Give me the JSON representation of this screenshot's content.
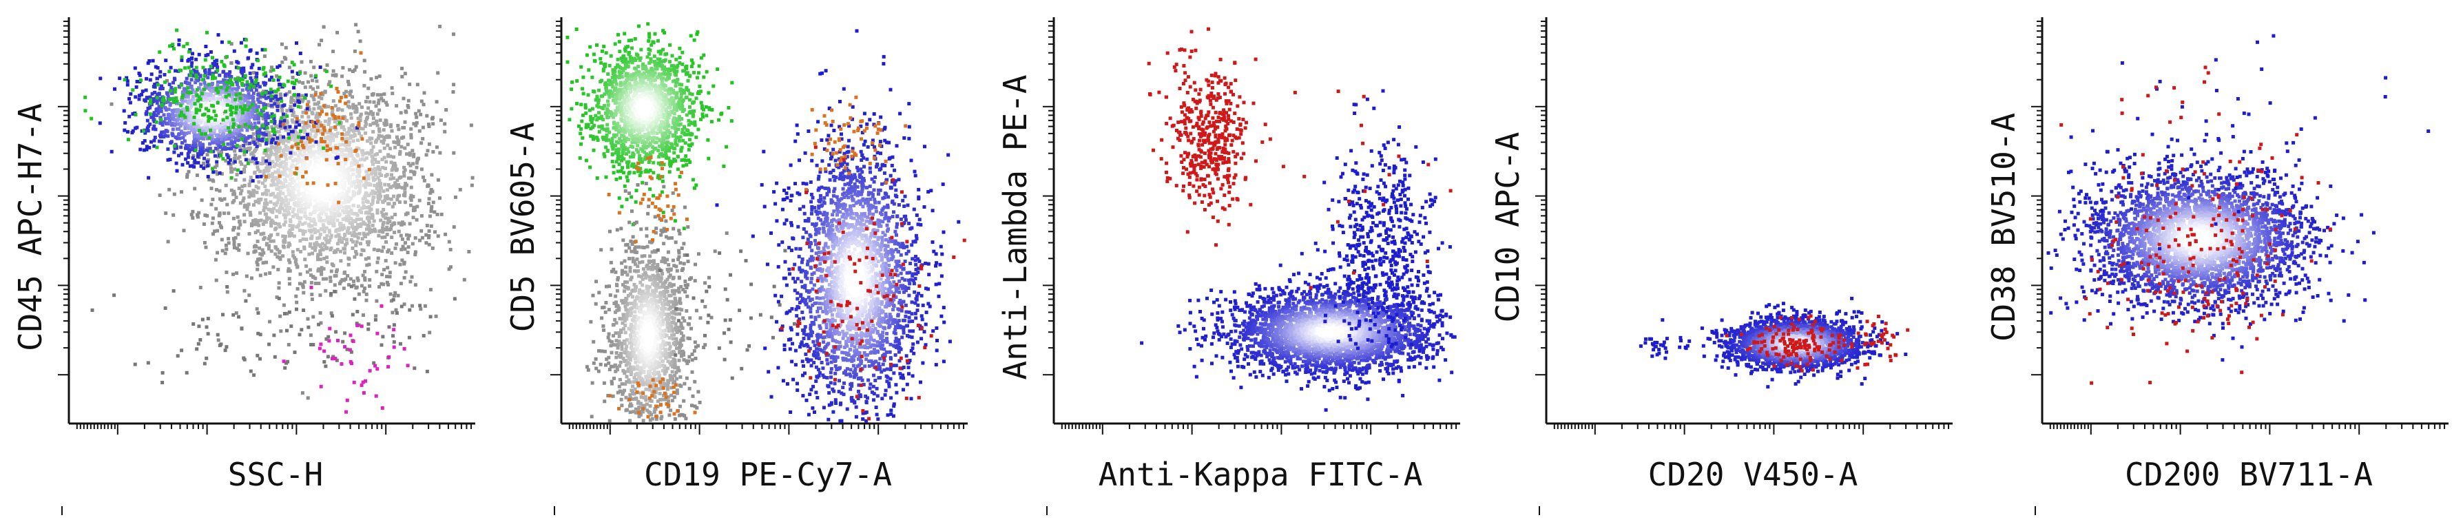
{
  "chart_data": [
    {
      "type": "scatter",
      "xlabel": "SSC-H",
      "ylabel": "CD45 APC-H7-A",
      "xscale": "log",
      "yscale": "log",
      "grid": false,
      "legend": "none",
      "populations": [
        {
          "color": "#8a8a8a",
          "density": true,
          "cx": 0.62,
          "cy": 0.6,
          "sx": 0.13,
          "sy": 0.13,
          "n": 2600
        },
        {
          "color": "#1c1cd0",
          "density": true,
          "cx": 0.35,
          "cy": 0.77,
          "sx": 0.09,
          "sy": 0.06,
          "n": 1300
        },
        {
          "color": "#1fc41f",
          "cx": 0.38,
          "cy": 0.8,
          "sx": 0.11,
          "sy": 0.07,
          "n": 250
        },
        {
          "color": "#d9731f",
          "cx": 0.62,
          "cy": 0.72,
          "sx": 0.06,
          "sy": 0.07,
          "n": 80
        },
        {
          "color": "#777777",
          "cx": 0.55,
          "cy": 0.22,
          "sx": 0.2,
          "sy": 0.06,
          "n": 110
        },
        {
          "color": "#e020c0",
          "cx": 0.7,
          "cy": 0.16,
          "sx": 0.06,
          "sy": 0.06,
          "n": 40
        }
      ]
    },
    {
      "type": "scatter",
      "xlabel": "CD19 PE-Cy7-A",
      "ylabel": "CD5 BV605-A",
      "xscale": "log",
      "yscale": "log",
      "grid": false,
      "legend": "none",
      "populations": [
        {
          "color": "#1fc41f",
          "density": true,
          "cx": 0.2,
          "cy": 0.78,
          "sx": 0.07,
          "sy": 0.08,
          "n": 1500
        },
        {
          "color": "#8a8a8a",
          "density": true,
          "cx": 0.21,
          "cy": 0.22,
          "sx": 0.05,
          "sy": 0.12,
          "n": 1400
        },
        {
          "color": "#1c1cd0",
          "density": true,
          "cx": 0.72,
          "cy": 0.36,
          "sx": 0.08,
          "sy": 0.16,
          "n": 2400
        },
        {
          "color": "#d9731f",
          "cx": 0.71,
          "cy": 0.7,
          "sx": 0.05,
          "sy": 0.05,
          "n": 60
        },
        {
          "color": "#d9731f",
          "cx": 0.22,
          "cy": 0.55,
          "sx": 0.04,
          "sy": 0.05,
          "n": 40
        },
        {
          "color": "#d9731f",
          "cx": 0.22,
          "cy": 0.06,
          "sx": 0.04,
          "sy": 0.03,
          "n": 35
        },
        {
          "color": "#d01818",
          "cx": 0.73,
          "cy": 0.3,
          "sx": 0.09,
          "sy": 0.17,
          "n": 110
        },
        {
          "color": "#777777",
          "cx": 0.4,
          "cy": 0.3,
          "sx": 0.1,
          "sy": 0.08,
          "n": 40
        }
      ]
    },
    {
      "type": "scatter",
      "xlabel": "Anti-Kappa FITC-A",
      "ylabel": "Anti-Lambda PE-A",
      "xscale": "log",
      "yscale": "log",
      "grid": false,
      "legend": "none",
      "populations": [
        {
          "color": "#1c1cd0",
          "density": true,
          "cx": 0.68,
          "cy": 0.23,
          "sx": 0.12,
          "sy": 0.05,
          "n": 3000
        },
        {
          "color": "#1c1cd0",
          "cx": 0.8,
          "cy": 0.44,
          "sx": 0.07,
          "sy": 0.13,
          "n": 500
        },
        {
          "color": "#d01818",
          "cx": 0.38,
          "cy": 0.72,
          "sx": 0.05,
          "sy": 0.09,
          "n": 420
        },
        {
          "color": "#d01818",
          "cx": 0.7,
          "cy": 0.6,
          "sx": 0.22,
          "sy": 0.22,
          "n": 25
        }
      ]
    },
    {
      "type": "scatter",
      "xlabel": "CD20 V450-A",
      "ylabel": "CD10 APC-A",
      "xscale": "log",
      "yscale": "log",
      "grid": false,
      "legend": "none",
      "populations": [
        {
          "color": "#1c1cd0",
          "density": true,
          "cx": 0.61,
          "cy": 0.2,
          "sx": 0.08,
          "sy": 0.03,
          "n": 2200
        },
        {
          "color": "#d01818",
          "cx": 0.62,
          "cy": 0.2,
          "sx": 0.06,
          "sy": 0.03,
          "n": 140
        },
        {
          "color": "#d01818",
          "cx": 0.82,
          "cy": 0.21,
          "sx": 0.03,
          "sy": 0.03,
          "n": 30
        },
        {
          "color": "#1c1cd0",
          "cx": 0.28,
          "cy": 0.2,
          "sx": 0.03,
          "sy": 0.02,
          "n": 30
        }
      ]
    },
    {
      "type": "scatter",
      "xlabel": "CD200 BV711-A",
      "ylabel": "CD38 BV510-A",
      "xscale": "log",
      "yscale": "log",
      "grid": false,
      "legend": "none",
      "populations": [
        {
          "color": "#1c1cd0",
          "density": true,
          "cx": 0.38,
          "cy": 0.46,
          "sx": 0.13,
          "sy": 0.08,
          "n": 3200
        },
        {
          "color": "#d01818",
          "cx": 0.38,
          "cy": 0.4,
          "sx": 0.13,
          "sy": 0.11,
          "n": 170
        },
        {
          "color": "#1c1cd0",
          "cx": 0.38,
          "cy": 0.7,
          "sx": 0.2,
          "sy": 0.14,
          "n": 50
        },
        {
          "color": "#d01818",
          "cx": 0.3,
          "cy": 0.72,
          "sx": 0.15,
          "sy": 0.14,
          "n": 30
        }
      ]
    }
  ]
}
